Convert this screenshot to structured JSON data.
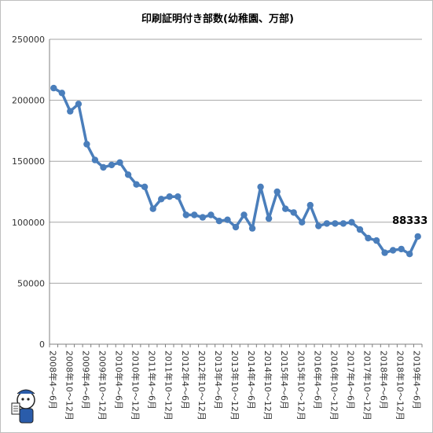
{
  "chart_data": {
    "type": "line",
    "title": "印刷証明付き部数(幼稚園、万部)",
    "xlabel": "",
    "ylabel": "",
    "ylim": [
      0,
      250000
    ],
    "yticks": [
      "0",
      "50000",
      "100000",
      "150000",
      "200000",
      "250000"
    ],
    "grid": true,
    "legend": "none",
    "series_color": "#4a7ebb",
    "x_labels_shown": [
      "2008年4～6月",
      "2008年10～12月",
      "2009年4～6月",
      "2009年10～12月",
      "2010年4～6月",
      "2010年10～12月",
      "2011年4～6月",
      "2011年10～12月",
      "2012年4～6月",
      "2012年10～12月",
      "2013年4～6月",
      "2013年10～12月",
      "2014年4～6月",
      "2014年10～12月",
      "2015年4～6月",
      "2015年10～12月",
      "2016年4～6月",
      "2016年10～12月",
      "2017年4～6月",
      "2017年10～12月",
      "2018年4～6月",
      "2018年10～12月",
      "2019年4～6月"
    ],
    "series": [
      {
        "values": [
          210000,
          206000,
          191000,
          197000,
          164000,
          151000,
          145000,
          147000,
          149000,
          139000,
          131000,
          129000,
          111000,
          119000,
          121000,
          121000,
          106000,
          106000,
          104000,
          106000,
          101000,
          102000,
          96000,
          106000,
          95000,
          129000,
          103000,
          125000,
          111000,
          108000,
          100000,
          114000,
          97000,
          99000,
          99000,
          99000,
          100000,
          94000,
          87000,
          85000,
          75000,
          77000,
          78000,
          74000,
          88333
        ]
      }
    ],
    "data_label": "88333"
  },
  "mascot_icon": "mascot-character-icon"
}
